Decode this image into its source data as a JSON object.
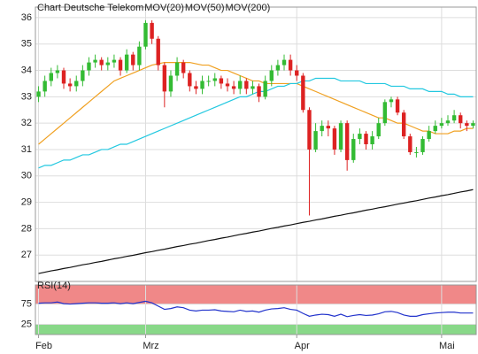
{
  "chart_data": [
    {
      "type": "candlestick",
      "title": "Chart Deutsche Telekom",
      "categories": [
        "Feb",
        null,
        null,
        null,
        null,
        null,
        null,
        null,
        null,
        null,
        null,
        null,
        null,
        null,
        null,
        null,
        null,
        "Mrz",
        null,
        null,
        null,
        null,
        null,
        null,
        null,
        null,
        null,
        null,
        null,
        null,
        null,
        null,
        null,
        null,
        null,
        null,
        null,
        null,
        null,
        null,
        null,
        "Apr",
        null,
        null,
        null,
        null,
        null,
        null,
        null,
        null,
        null,
        null,
        null,
        null,
        null,
        null,
        null,
        null,
        null,
        null,
        null,
        null,
        null,
        null,
        "Mai",
        null,
        null,
        null,
        null,
        null
      ],
      "open": [
        33.0,
        33.2,
        33.6,
        33.9,
        34.0,
        33.5,
        33.4,
        33.6,
        34.0,
        34.3,
        34.4,
        34.2,
        34.3,
        34.4,
        34.0,
        34.6,
        34.2,
        34.9,
        35.8,
        35.2,
        34.2,
        33.2,
        33.8,
        34.3,
        33.9,
        33.4,
        33.3,
        33.6,
        33.6,
        33.7,
        33.5,
        33.4,
        33.3,
        33.6,
        33.3,
        33.4,
        33.0,
        33.6,
        34.0,
        34.2,
        34.4,
        34.0,
        33.8,
        32.5,
        31.0,
        31.7,
        31.9,
        31.8,
        31.0,
        32.0,
        30.6,
        31.4,
        31.6,
        31.2,
        31.5,
        32.0,
        32.8,
        32.9,
        32.4,
        31.5,
        30.9,
        30.9,
        31.4,
        31.7,
        31.9,
        32.0,
        32.1,
        32.3,
        32.0,
        31.9
      ],
      "high": [
        33.4,
        33.8,
        34.1,
        34.2,
        34.1,
        33.7,
        33.8,
        34.2,
        34.5,
        34.6,
        34.5,
        34.5,
        34.6,
        34.5,
        34.8,
        34.7,
        35.1,
        35.9,
        35.9,
        35.3,
        34.3,
        34.0,
        34.5,
        34.4,
        34.0,
        33.6,
        33.8,
        33.8,
        33.9,
        33.8,
        33.7,
        33.6,
        33.8,
        33.7,
        33.6,
        33.5,
        33.8,
        34.2,
        34.4,
        34.6,
        34.6,
        34.2,
        33.9,
        32.6,
        32.0,
        32.1,
        32.1,
        31.9,
        32.1,
        32.1,
        31.6,
        31.8,
        31.7,
        31.7,
        32.2,
        32.9,
        33.0,
        33.0,
        32.5,
        31.6,
        31.1,
        31.5,
        31.9,
        32.1,
        32.2,
        32.3,
        32.5,
        32.4,
        32.1,
        32.1
      ],
      "low": [
        32.8,
        33.0,
        33.4,
        33.7,
        33.3,
        33.2,
        33.2,
        33.4,
        33.8,
        34.1,
        34.0,
        34.0,
        34.1,
        33.8,
        33.9,
        34.0,
        34.0,
        34.8,
        35.0,
        34.0,
        32.6,
        33.0,
        33.6,
        33.7,
        33.2,
        33.1,
        33.1,
        33.4,
        33.4,
        33.3,
        33.2,
        33.1,
        33.1,
        33.1,
        33.1,
        32.8,
        32.9,
        33.4,
        33.8,
        34.0,
        33.8,
        33.6,
        32.4,
        28.5,
        30.9,
        31.5,
        31.5,
        30.8,
        30.9,
        30.2,
        30.5,
        31.2,
        31.0,
        31.0,
        31.4,
        31.9,
        32.6,
        32.3,
        31.4,
        30.8,
        30.7,
        30.8,
        31.3,
        31.6,
        31.8,
        31.9,
        32.0,
        31.8,
        31.7,
        31.8
      ],
      "close": [
        33.2,
        33.6,
        33.9,
        34.0,
        33.5,
        33.4,
        33.6,
        34.0,
        34.3,
        34.4,
        34.2,
        34.3,
        34.4,
        34.0,
        34.6,
        34.2,
        34.9,
        35.8,
        35.2,
        34.2,
        33.2,
        33.8,
        34.3,
        33.9,
        33.4,
        33.3,
        33.6,
        33.6,
        33.7,
        33.5,
        33.4,
        33.3,
        33.6,
        33.3,
        33.4,
        33.0,
        33.6,
        34.0,
        34.2,
        34.4,
        34.0,
        33.8,
        32.5,
        31.0,
        31.7,
        31.9,
        31.8,
        31.0,
        32.0,
        30.6,
        31.4,
        31.6,
        31.2,
        31.5,
        32.0,
        32.8,
        32.9,
        32.4,
        31.5,
        30.9,
        30.9,
        31.4,
        31.7,
        31.9,
        32.0,
        32.1,
        32.3,
        32.0,
        31.9,
        32.0
      ],
      "up_color": "#33bb33",
      "down_color": "#dd2222",
      "series": [
        {
          "name": "MOV(20)",
          "color": "#f0a020",
          "values": [
            31.2,
            31.4,
            31.6,
            31.8,
            32.0,
            32.2,
            32.4,
            32.6,
            32.8,
            33.0,
            33.2,
            33.4,
            33.6,
            33.7,
            33.8,
            33.9,
            34.0,
            34.1,
            34.2,
            34.25,
            34.3,
            34.3,
            34.3,
            34.3,
            34.3,
            34.25,
            34.2,
            34.2,
            34.1,
            34.0,
            34.0,
            33.9,
            33.8,
            33.7,
            33.6,
            33.6,
            33.5,
            33.5,
            33.5,
            33.5,
            33.5,
            33.5,
            33.4,
            33.3,
            33.2,
            33.1,
            33.0,
            32.9,
            32.8,
            32.7,
            32.6,
            32.5,
            32.4,
            32.3,
            32.2,
            32.2,
            32.1,
            32.0,
            32.0,
            31.9,
            31.8,
            31.7,
            31.7,
            31.6,
            31.6,
            31.6,
            31.7,
            31.7,
            31.8,
            31.8
          ]
        },
        {
          "name": "MOV(50)",
          "color": "#22c8e0",
          "values": [
            30.3,
            30.4,
            30.4,
            30.5,
            30.6,
            30.6,
            30.7,
            30.8,
            30.8,
            30.9,
            31.0,
            31.0,
            31.1,
            31.2,
            31.2,
            31.3,
            31.4,
            31.5,
            31.6,
            31.7,
            31.8,
            31.9,
            32.0,
            32.1,
            32.2,
            32.3,
            32.4,
            32.5,
            32.6,
            32.7,
            32.8,
            32.9,
            33.0,
            33.0,
            33.1,
            33.2,
            33.2,
            33.3,
            33.4,
            33.4,
            33.5,
            33.5,
            33.6,
            33.6,
            33.7,
            33.7,
            33.7,
            33.7,
            33.6,
            33.6,
            33.6,
            33.6,
            33.5,
            33.5,
            33.5,
            33.5,
            33.4,
            33.4,
            33.4,
            33.3,
            33.3,
            33.3,
            33.2,
            33.2,
            33.2,
            33.1,
            33.1,
            33.0,
            33.0,
            33.0
          ]
        },
        {
          "name": "MOV(200)",
          "color": "#111111",
          "values": [
            26.3,
            26.35,
            26.4,
            26.44,
            26.49,
            26.53,
            26.58,
            26.63,
            26.67,
            26.72,
            26.76,
            26.81,
            26.86,
            26.9,
            26.95,
            26.99,
            27.04,
            27.09,
            27.13,
            27.18,
            27.22,
            27.27,
            27.32,
            27.36,
            27.41,
            27.45,
            27.5,
            27.55,
            27.59,
            27.64,
            27.68,
            27.73,
            27.78,
            27.82,
            27.87,
            27.91,
            27.96,
            28.01,
            28.05,
            28.1,
            28.14,
            28.19,
            28.24,
            28.28,
            28.33,
            28.37,
            28.42,
            28.47,
            28.51,
            28.56,
            28.6,
            28.65,
            28.7,
            28.74,
            28.79,
            28.83,
            28.88,
            28.93,
            28.97,
            29.02,
            29.06,
            29.11,
            29.16,
            29.2,
            29.25,
            29.29,
            29.34,
            29.39,
            29.43,
            29.48
          ]
        }
      ],
      "ylim": [
        26.0,
        36.4
      ],
      "yticks": [
        27,
        28,
        29,
        30,
        31,
        32,
        33,
        34,
        35,
        36
      ],
      "grid": true
    },
    {
      "type": "line",
      "title": "RSI(14)",
      "series": [
        {
          "color": "#2233cc",
          "values": [
            77,
            78,
            78,
            80,
            76,
            75,
            76,
            77,
            78,
            78,
            77,
            77,
            78,
            76,
            78,
            76,
            79,
            82,
            78,
            70,
            62,
            64,
            68,
            66,
            60,
            58,
            60,
            60,
            61,
            58,
            57,
            56,
            60,
            57,
            58,
            55,
            60,
            63,
            64,
            66,
            62,
            60,
            52,
            45,
            48,
            50,
            49,
            45,
            50,
            44,
            47,
            49,
            47,
            48,
            51,
            56,
            57,
            54,
            48,
            45,
            45,
            49,
            51,
            53,
            54,
            55,
            55,
            53,
            53,
            53
          ]
        }
      ],
      "ylim": [
        0,
        122
      ],
      "yticks": [
        25,
        75
      ],
      "upper_color": "#f08888",
      "lower_color": "#88d888",
      "grid": true
    }
  ]
}
